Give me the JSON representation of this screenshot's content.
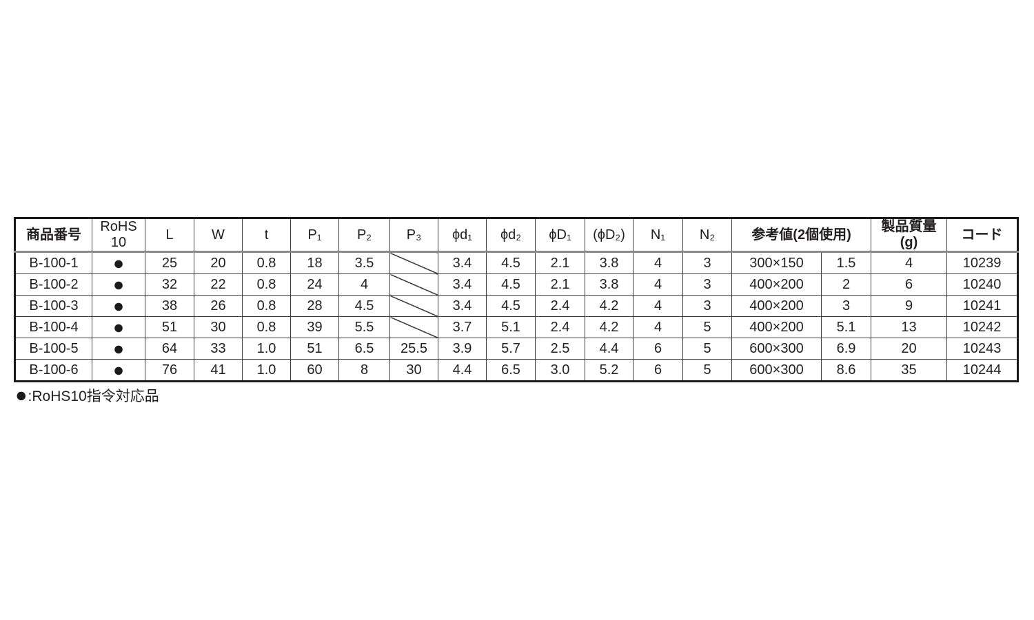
{
  "page": {
    "background": "#ffffff"
  },
  "colors": {
    "text": "#231f20",
    "outer_border": "#1a1a1a",
    "inner_line": "#3f3f3f",
    "header_rule": "#8a8a8a",
    "rohs_dot": "#1b1b1b"
  },
  "table": {
    "headers": [
      "商品番号",
      "RoHS\n10",
      "L",
      "W",
      "t",
      "P₁",
      "P₂",
      "P₃",
      "ϕd₁",
      "ϕd₂",
      "ϕD₁",
      "(ϕD₂)",
      "N₁",
      "N₂",
      "参考値(2個使用)",
      "製品質量\n(g)",
      "コード"
    ],
    "col_keys": [
      "product-number",
      "rohs10",
      "L",
      "W",
      "t",
      "P1",
      "P2",
      "P3",
      "phi-d1",
      "phi-d2",
      "phi-D1",
      "phi-D2",
      "N1",
      "N2",
      "reference-size",
      "reference-value",
      "weight-g",
      "code"
    ],
    "rows": [
      {
        "cells": [
          "B-100-1",
          "●",
          "25",
          "20",
          "0.8",
          "18",
          "3.5",
          null,
          "3.4",
          "4.5",
          "2.1",
          "3.8",
          "4",
          "3",
          "300×150",
          "1.5",
          "4",
          "10239"
        ]
      },
      {
        "cells": [
          "B-100-2",
          "●",
          "32",
          "22",
          "0.8",
          "24",
          "4",
          null,
          "3.4",
          "4.5",
          "2.1",
          "3.8",
          "4",
          "3",
          "400×200",
          "2",
          "6",
          "10240"
        ]
      },
      {
        "cells": [
          "B-100-3",
          "●",
          "38",
          "26",
          "0.8",
          "28",
          "4.5",
          null,
          "3.4",
          "4.5",
          "2.4",
          "4.2",
          "4",
          "3",
          "400×200",
          "3",
          "9",
          "10241"
        ]
      },
      {
        "cells": [
          "B-100-4",
          "●",
          "51",
          "30",
          "0.8",
          "39",
          "5.5",
          null,
          "3.7",
          "5.1",
          "2.4",
          "4.2",
          "4",
          "5",
          "400×200",
          "5.1",
          "13",
          "10242"
        ]
      },
      {
        "cells": [
          "B-100-5",
          "●",
          "64",
          "33",
          "1.0",
          "51",
          "6.5",
          "25.5",
          "3.9",
          "5.7",
          "2.5",
          "4.4",
          "6",
          "5",
          "600×300",
          "6.9",
          "20",
          "10243"
        ]
      },
      {
        "cells": [
          "B-100-6",
          "●",
          "76",
          "41",
          "1.0",
          "60",
          "8",
          "30",
          "4.4",
          "6.5",
          "3.0",
          "5.2",
          "6",
          "5",
          "600×300",
          "8.6",
          "35",
          "10244"
        ]
      }
    ]
  },
  "footnote": {
    "bullet": "●",
    "label": ":RoHS10指令対応品"
  }
}
